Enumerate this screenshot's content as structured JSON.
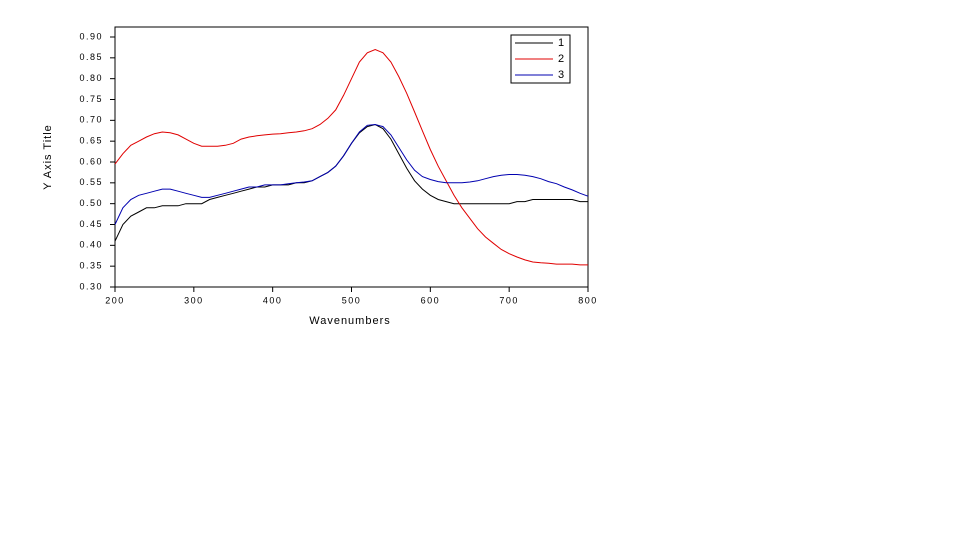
{
  "chart_data": {
    "type": "line",
    "xlabel": "Wavenumbers",
    "ylabel": "Y Axis Title",
    "x": [
      200,
      210,
      220,
      230,
      240,
      250,
      260,
      270,
      280,
      290,
      300,
      310,
      320,
      330,
      340,
      350,
      360,
      370,
      380,
      390,
      400,
      410,
      420,
      430,
      440,
      450,
      460,
      470,
      480,
      490,
      500,
      510,
      520,
      530,
      540,
      550,
      560,
      570,
      580,
      590,
      600,
      610,
      620,
      630,
      640,
      650,
      660,
      670,
      680,
      690,
      700,
      710,
      720,
      730,
      740,
      750,
      760,
      770,
      780,
      790,
      800
    ],
    "series": [
      {
        "name": "1",
        "color": "#000000",
        "values": [
          0.41,
          0.45,
          0.47,
          0.48,
          0.49,
          0.49,
          0.495,
          0.495,
          0.495,
          0.5,
          0.5,
          0.5,
          0.51,
          0.515,
          0.52,
          0.525,
          0.53,
          0.535,
          0.54,
          0.54,
          0.545,
          0.545,
          0.545,
          0.55,
          0.55,
          0.555,
          0.565,
          0.575,
          0.59,
          0.615,
          0.645,
          0.67,
          0.685,
          0.69,
          0.68,
          0.655,
          0.62,
          0.585,
          0.555,
          0.535,
          0.52,
          0.51,
          0.505,
          0.5,
          0.5,
          0.5,
          0.5,
          0.5,
          0.5,
          0.5,
          0.5,
          0.505,
          0.505,
          0.51,
          0.51,
          0.51,
          0.51,
          0.51,
          0.51,
          0.505,
          0.505
        ]
      },
      {
        "name": "2",
        "color": "#e00000",
        "values": [
          0.595,
          0.62,
          0.64,
          0.65,
          0.66,
          0.668,
          0.672,
          0.67,
          0.665,
          0.655,
          0.645,
          0.638,
          0.638,
          0.638,
          0.64,
          0.645,
          0.655,
          0.66,
          0.663,
          0.665,
          0.667,
          0.668,
          0.67,
          0.672,
          0.675,
          0.68,
          0.69,
          0.705,
          0.725,
          0.76,
          0.8,
          0.84,
          0.862,
          0.87,
          0.862,
          0.84,
          0.805,
          0.765,
          0.72,
          0.675,
          0.63,
          0.59,
          0.555,
          0.52,
          0.49,
          0.465,
          0.44,
          0.42,
          0.405,
          0.39,
          0.38,
          0.372,
          0.365,
          0.36,
          0.358,
          0.357,
          0.355,
          0.355,
          0.355,
          0.353,
          0.353
        ]
      },
      {
        "name": "3",
        "color": "#0000b0",
        "values": [
          0.45,
          0.49,
          0.51,
          0.52,
          0.525,
          0.53,
          0.535,
          0.535,
          0.53,
          0.525,
          0.52,
          0.515,
          0.515,
          0.52,
          0.525,
          0.53,
          0.535,
          0.54,
          0.54,
          0.545,
          0.545,
          0.545,
          0.548,
          0.55,
          0.552,
          0.555,
          0.565,
          0.575,
          0.59,
          0.615,
          0.645,
          0.672,
          0.688,
          0.69,
          0.685,
          0.665,
          0.635,
          0.605,
          0.58,
          0.565,
          0.558,
          0.553,
          0.55,
          0.55,
          0.55,
          0.552,
          0.555,
          0.56,
          0.565,
          0.568,
          0.57,
          0.57,
          0.568,
          0.565,
          0.56,
          0.553,
          0.548,
          0.54,
          0.533,
          0.525,
          0.518
        ]
      }
    ],
    "xlim": [
      200,
      800
    ],
    "xticks": [
      200,
      300,
      400,
      500,
      600,
      700,
      800
    ],
    "ylim": [
      0.3,
      0.924
    ],
    "yticks": [
      {
        "value": 0.3,
        "label": "0.30"
      },
      0.35,
      {
        "value": 0.4,
        "label": "0.40"
      },
      0.45,
      {
        "value": 0.5,
        "label": "0.50"
      },
      0.55,
      {
        "value": 0.6,
        "label": "0.60"
      },
      0.65,
      {
        "value": 0.7,
        "label": "0.70"
      },
      0.75,
      {
        "value": 0.8,
        "label": "0.80"
      },
      0.85,
      {
        "value": 0.9,
        "label": "0.90"
      }
    ],
    "legend": "upper right"
  }
}
